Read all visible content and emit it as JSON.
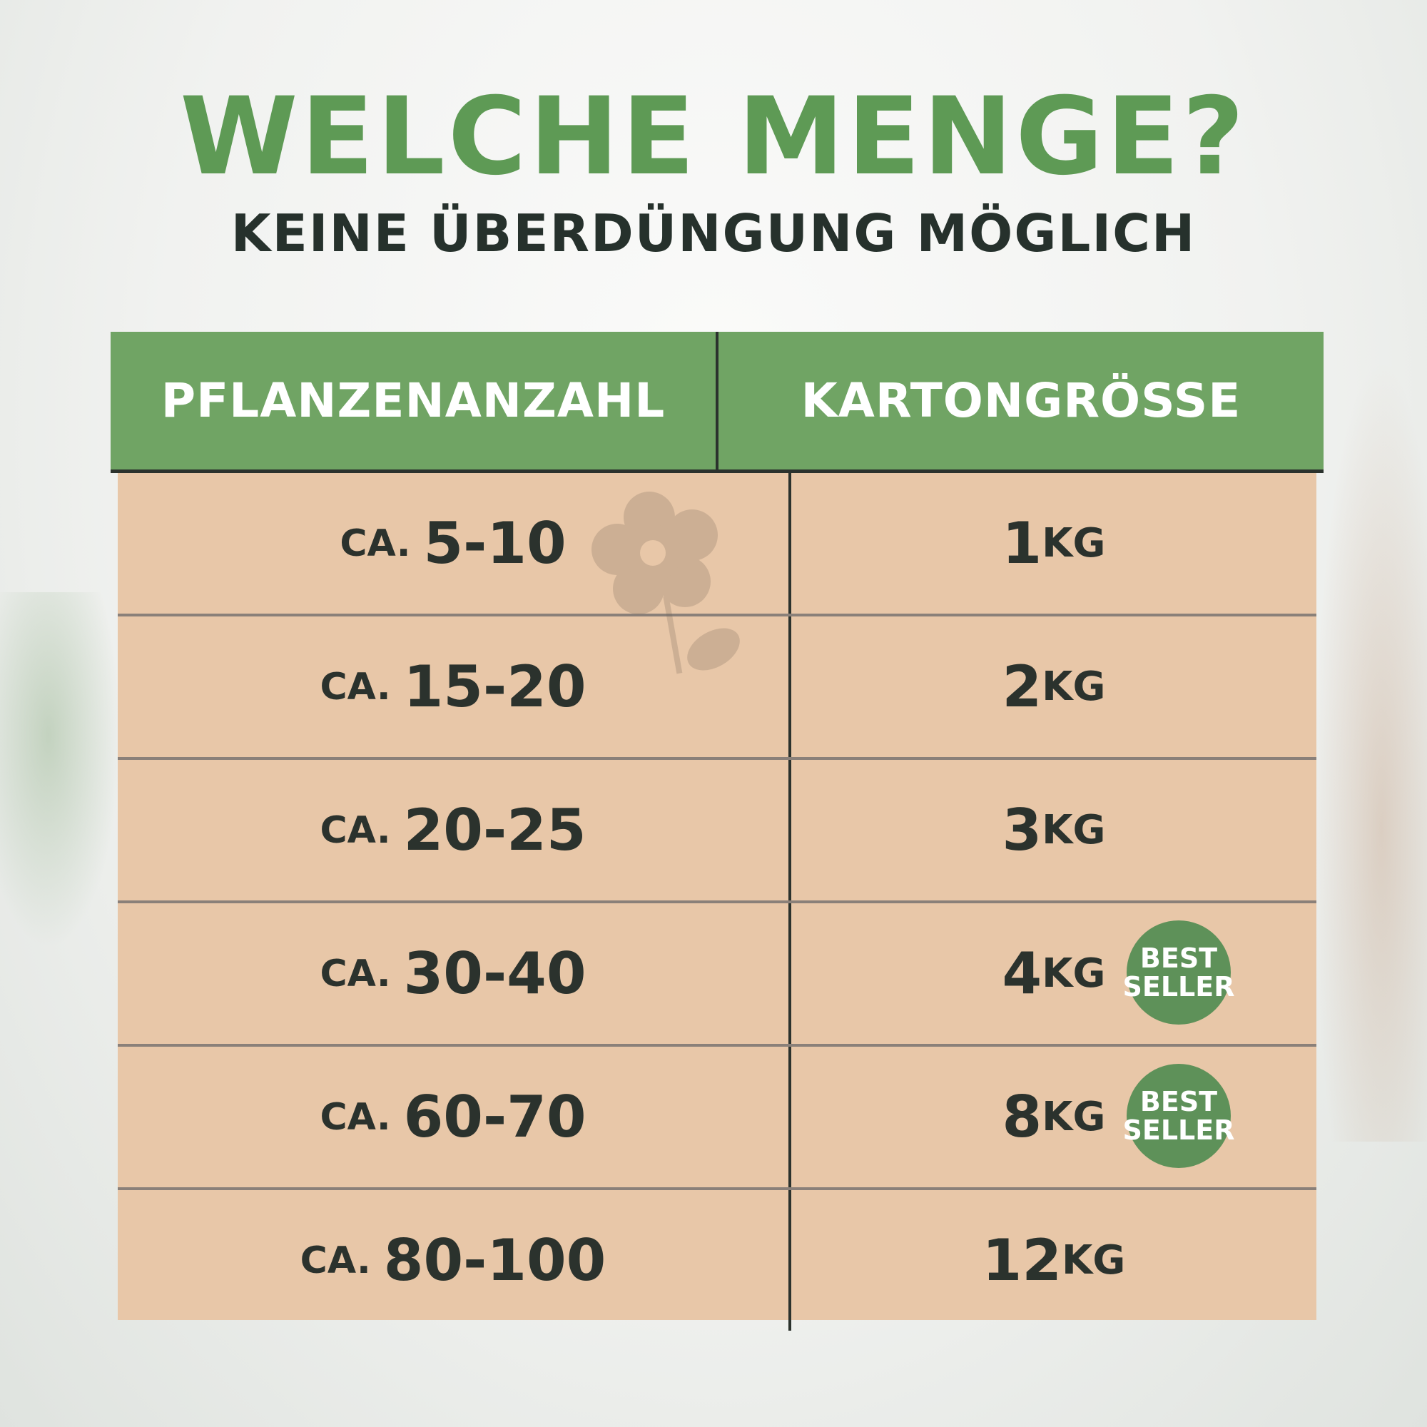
{
  "title": "WELCHE MENGE?",
  "subtitle": "KEINE ÜBERDÜNGUNG MÖGLICH",
  "table": {
    "headers": [
      "PFLANZENANZAHL",
      "KARTONGRÖSSE"
    ],
    "prefix": "CA.",
    "unit": "KG",
    "rows": [
      {
        "plants": "5-10",
        "size": "1",
        "badge": null
      },
      {
        "plants": "15-20",
        "size": "2",
        "badge": null
      },
      {
        "plants": "20-25",
        "size": "3",
        "badge": null
      },
      {
        "plants": "30-40",
        "size": "4",
        "badge": "BEST SELLER"
      },
      {
        "plants": "60-70",
        "size": "8",
        "badge": "BEST SELLER"
      },
      {
        "plants": "80-100",
        "size": "12",
        "badge": null
      }
    ]
  },
  "badge": {
    "line1": "BEST",
    "line2": "SELLER"
  },
  "colors": {
    "accent": "#5e9a55",
    "header": "#70a464",
    "body": "#e8c7a8",
    "text": "#2b322d"
  }
}
